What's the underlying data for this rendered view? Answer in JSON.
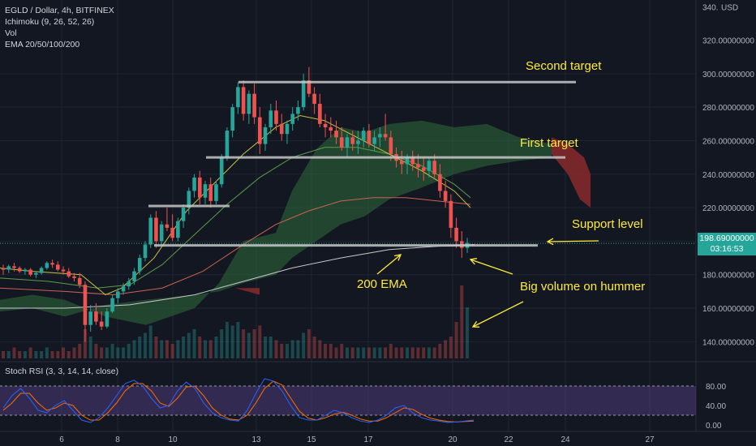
{
  "legend": {
    "title": "EGLD / Dollar, 4h, BITFINEX",
    "lines": [
      "Ichimoku (9, 26, 52, 26)",
      "Vol",
      "EMA 20/50/100/200"
    ]
  },
  "price_axis": {
    "currency": "USD",
    "current_price": "198.69000000",
    "countdown": "03:16:53"
  },
  "annotations": {
    "second_target": "Second target",
    "first_target": "First target",
    "support_level": "Support level",
    "ema200": "200 EMA",
    "big_volume": "Big volume on hummer"
  },
  "rsi": {
    "label": "Stoch RSI (3, 3, 14, 14, close)",
    "ticks": [
      "80.00",
      "40.00",
      "0.00"
    ],
    "range": [
      0,
      100
    ],
    "bands": [
      20,
      80
    ]
  },
  "colors": {
    "background": "#131722",
    "up": "#26a69a",
    "down": "#ef5350",
    "annotation": "#ffeb3b",
    "level_line": "#c8c8c8",
    "ema20": "#c7c240",
    "ema50": "#5c9c4a",
    "ema100": "#c86450",
    "ema200": "#c8c8c8",
    "cloud_bull": "#2f6b3a",
    "cloud_bear": "#8a2a2a",
    "rsi_k": "#2962ff",
    "rsi_d": "#ff6d00",
    "rsi_band": "#7e57c2"
  },
  "chart_data": {
    "type": "candlestick",
    "title": "EGLD / Dollar, 4h, BITFINEX",
    "x_ticks": [
      "6",
      "8",
      "10",
      "13",
      "15",
      "17",
      "20",
      "22",
      "24",
      "27"
    ],
    "y_ticks": [
      "340.",
      "320.00000000",
      "300.00000000",
      "280.00000000",
      "260.00000000",
      "240.00000000",
      "220.00000000",
      "180.00000000",
      "160.00000000",
      "140.00000000"
    ],
    "ylim": [
      130,
      344
    ],
    "levels": [
      {
        "name": "second-target",
        "price": 295
      },
      {
        "name": "first-target",
        "price": 250
      },
      {
        "name": "interim-level",
        "price": 221
      },
      {
        "name": "support-level",
        "price": 197.5
      }
    ],
    "candles": [
      [
        184,
        186,
        180,
        183
      ],
      [
        183,
        186,
        181,
        185
      ],
      [
        185,
        187,
        182,
        184
      ],
      [
        184,
        185,
        181,
        182
      ],
      [
        182,
        184,
        180,
        183
      ],
      [
        183,
        184,
        179,
        180
      ],
      [
        180,
        182,
        178,
        181
      ],
      [
        181,
        185,
        180,
        184
      ],
      [
        184,
        188,
        183,
        187
      ],
      [
        187,
        189,
        184,
        186
      ],
      [
        186,
        188,
        182,
        183
      ],
      [
        183,
        185,
        180,
        182
      ],
      [
        182,
        184,
        178,
        179
      ],
      [
        179,
        181,
        176,
        178
      ],
      [
        178,
        181,
        172,
        174
      ],
      [
        174,
        176,
        140,
        150
      ],
      [
        150,
        162,
        146,
        158
      ],
      [
        158,
        163,
        150,
        152
      ],
      [
        152,
        158,
        147,
        149
      ],
      [
        149,
        160,
        148,
        158
      ],
      [
        158,
        168,
        157,
        166
      ],
      [
        166,
        172,
        163,
        170
      ],
      [
        170,
        175,
        168,
        173
      ],
      [
        173,
        178,
        171,
        176
      ],
      [
        176,
        184,
        174,
        182
      ],
      [
        182,
        192,
        180,
        190
      ],
      [
        190,
        200,
        188,
        198
      ],
      [
        198,
        216,
        196,
        214
      ],
      [
        214,
        218,
        196,
        200
      ],
      [
        200,
        212,
        198,
        210
      ],
      [
        210,
        220,
        206,
        208
      ],
      [
        208,
        216,
        200,
        202
      ],
      [
        202,
        214,
        200,
        212
      ],
      [
        212,
        222,
        208,
        220
      ],
      [
        220,
        232,
        216,
        230
      ],
      [
        230,
        240,
        226,
        238
      ],
      [
        238,
        242,
        222,
        226
      ],
      [
        226,
        236,
        222,
        234
      ],
      [
        234,
        238,
        220,
        224
      ],
      [
        224,
        236,
        222,
        234
      ],
      [
        234,
        252,
        232,
        250
      ],
      [
        250,
        268,
        248,
        266
      ],
      [
        266,
        282,
        262,
        280
      ],
      [
        280,
        295,
        276,
        292
      ],
      [
        292,
        296,
        272,
        276
      ],
      [
        276,
        290,
        270,
        288
      ],
      [
        288,
        294,
        270,
        274
      ],
      [
        274,
        280,
        252,
        258
      ],
      [
        258,
        270,
        254,
        268
      ],
      [
        268,
        282,
        264,
        278
      ],
      [
        278,
        284,
        266,
        270
      ],
      [
        270,
        276,
        260,
        264
      ],
      [
        264,
        272,
        258,
        270
      ],
      [
        270,
        280,
        266,
        276
      ],
      [
        276,
        284,
        272,
        280
      ],
      [
        280,
        300,
        278,
        296
      ],
      [
        296,
        304,
        286,
        288
      ],
      [
        288,
        292,
        276,
        282
      ],
      [
        282,
        288,
        268,
        270
      ],
      [
        270,
        276,
        262,
        268
      ],
      [
        268,
        274,
        262,
        266
      ],
      [
        266,
        272,
        258,
        262
      ],
      [
        262,
        268,
        254,
        256
      ],
      [
        256,
        264,
        250,
        262
      ],
      [
        262,
        266,
        254,
        258
      ],
      [
        258,
        266,
        252,
        260
      ],
      [
        260,
        268,
        256,
        266
      ],
      [
        266,
        270,
        256,
        258
      ],
      [
        258,
        266,
        254,
        262
      ],
      [
        262,
        268,
        256,
        264
      ],
      [
        264,
        276,
        260,
        262
      ],
      [
        262,
        266,
        248,
        252
      ],
      [
        252,
        256,
        244,
        248
      ],
      [
        248,
        254,
        240,
        246
      ],
      [
        246,
        252,
        240,
        250
      ],
      [
        250,
        254,
        242,
        246
      ],
      [
        246,
        252,
        238,
        244
      ],
      [
        244,
        250,
        236,
        242
      ],
      [
        242,
        250,
        238,
        248
      ],
      [
        248,
        252,
        238,
        240
      ],
      [
        240,
        246,
        226,
        230
      ],
      [
        230,
        236,
        220,
        224
      ],
      [
        224,
        228,
        202,
        208
      ],
      [
        208,
        214,
        196,
        200
      ],
      [
        200,
        206,
        190,
        196
      ],
      [
        196,
        202,
        193,
        199
      ]
    ],
    "ema20": [
      [
        0,
        184
      ],
      [
        40,
        182
      ],
      [
        100,
        180
      ],
      [
        130,
        168
      ],
      [
        150,
        172
      ],
      [
        190,
        190
      ],
      [
        230,
        218
      ],
      [
        265,
        235
      ],
      [
        300,
        252
      ],
      [
        340,
        268
      ],
      [
        370,
        275
      ],
      [
        400,
        272
      ],
      [
        440,
        262
      ],
      [
        480,
        252
      ],
      [
        520,
        242
      ],
      [
        560,
        230
      ],
      [
        580,
        220
      ]
    ],
    "ema50": [
      [
        0,
        178
      ],
      [
        60,
        176
      ],
      [
        120,
        172
      ],
      [
        160,
        174
      ],
      [
        200,
        186
      ],
      [
        240,
        204
      ],
      [
        280,
        222
      ],
      [
        320,
        238
      ],
      [
        360,
        250
      ],
      [
        400,
        256
      ],
      [
        440,
        256
      ],
      [
        480,
        252
      ],
      [
        520,
        245
      ],
      [
        560,
        234
      ],
      [
        580,
        226
      ]
    ],
    "ema100": [
      [
        0,
        172
      ],
      [
        80,
        170
      ],
      [
        140,
        168
      ],
      [
        200,
        172
      ],
      [
        250,
        182
      ],
      [
        300,
        198
      ],
      [
        340,
        210
      ],
      [
        380,
        218
      ],
      [
        420,
        224
      ],
      [
        460,
        226
      ],
      [
        500,
        226
      ],
      [
        540,
        224
      ],
      [
        580,
        222
      ]
    ],
    "ema200": [
      [
        0,
        160
      ],
      [
        80,
        160
      ],
      [
        160,
        162
      ],
      [
        240,
        168
      ],
      [
        300,
        176
      ],
      [
        360,
        184
      ],
      [
        420,
        190
      ],
      [
        480,
        195
      ],
      [
        540,
        197
      ],
      [
        585,
        198
      ]
    ],
    "volume": [
      2,
      2,
      3,
      2,
      2,
      3,
      2,
      2,
      3,
      2,
      2,
      3,
      2,
      3,
      4,
      8,
      6,
      4,
      3,
      3,
      4,
      3,
      3,
      4,
      5,
      6,
      7,
      9,
      6,
      5,
      5,
      4,
      5,
      6,
      7,
      8,
      6,
      5,
      5,
      6,
      8,
      10,
      9,
      10,
      8,
      7,
      8,
      9,
      6,
      6,
      5,
      4,
      4,
      5,
      5,
      7,
      8,
      6,
      5,
      4,
      4,
      3,
      4,
      3,
      3,
      3,
      3,
      3,
      3,
      3,
      3,
      4,
      3,
      3,
      3,
      3,
      3,
      3,
      3,
      3,
      4,
      5,
      6,
      10,
      20,
      14
    ],
    "stoch_rsi_k": [
      35,
      60,
      75,
      55,
      30,
      25,
      40,
      50,
      30,
      10,
      5,
      15,
      35,
      60,
      85,
      92,
      80,
      55,
      35,
      40,
      70,
      88,
      75,
      45,
      25,
      15,
      10,
      8,
      30,
      65,
      95,
      90,
      70,
      40,
      15,
      10,
      10,
      20,
      30,
      25,
      15,
      8,
      5,
      10,
      20,
      35,
      40,
      25,
      15,
      10,
      8,
      5,
      6,
      8,
      10
    ],
    "stoch_rsi_d": [
      30,
      45,
      65,
      65,
      45,
      30,
      35,
      45,
      40,
      20,
      10,
      10,
      25,
      45,
      70,
      85,
      85,
      70,
      45,
      38,
      55,
      78,
      80,
      60,
      35,
      20,
      12,
      10,
      20,
      45,
      75,
      90,
      82,
      55,
      28,
      14,
      10,
      15,
      22,
      26,
      20,
      12,
      8,
      8,
      15,
      25,
      35,
      32,
      22,
      14,
      10,
      7,
      6,
      7,
      8
    ]
  }
}
